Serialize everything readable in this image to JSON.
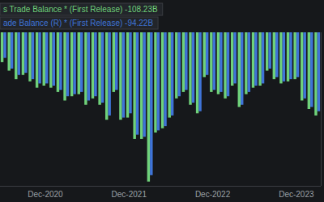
{
  "chart_data": {
    "type": "bar",
    "categories": [
      null,
      null,
      null,
      null,
      null,
      null,
      "Dec-2020",
      null,
      null,
      null,
      null,
      null,
      null,
      null,
      null,
      null,
      null,
      null,
      "Dec-2021",
      null,
      null,
      null,
      null,
      null,
      null,
      null,
      null,
      null,
      null,
      null,
      "Dec-2022",
      null,
      null,
      null,
      null,
      null,
      null,
      null,
      null,
      null,
      null,
      null,
      "Dec-2023",
      null,
      null,
      null
    ],
    "series": [
      {
        "name": "s Trade Balance * (First Release) -108.23B",
        "color": "#6fd17a",
        "values": [
          -54,
          -58,
          -62,
          -60,
          -63,
          -66,
          -65,
          -66,
          -68,
          -72,
          -70,
          -69,
          -74,
          -71,
          -74,
          -81,
          -68,
          -81,
          -80,
          -90,
          -90,
          -110,
          -87,
          -85,
          -80,
          -71,
          -68,
          -74,
          -78,
          -61,
          -68,
          -69,
          -71,
          -65,
          -75,
          -69,
          -66,
          -65,
          -58,
          -62,
          -64,
          -63,
          -62,
          -72,
          -76,
          -79
        ]
      },
      {
        "name": "ade Balance (R) * (First Release) -94.22B",
        "color": "#3f74d8",
        "values": [
          -52,
          -57,
          -60,
          -59,
          -62,
          -64,
          -64,
          -65,
          -67,
          -70,
          -69,
          -68,
          -72,
          -70,
          -73,
          -79,
          -67,
          -80,
          -78,
          -88,
          -89,
          -107,
          -86,
          -84,
          -79,
          -70,
          -67,
          -73,
          -77,
          -60,
          -67,
          -68,
          -70,
          -64,
          -74,
          -68,
          -65,
          -64,
          -57,
          -61,
          -63,
          -62,
          -61,
          -71,
          -75,
          -77
        ]
      }
    ],
    "ylim": [
      -112,
      -40
    ],
    "grid": false,
    "legend": "top-left",
    "tick_labels": "x"
  }
}
